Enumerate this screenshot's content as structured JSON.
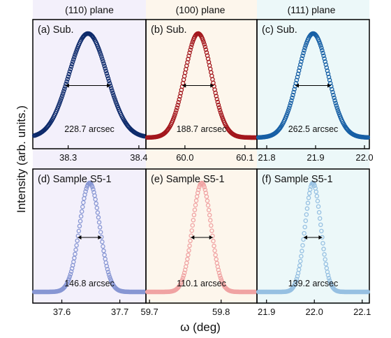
{
  "figure": {
    "ylabel": "Intensity (arb. units.)",
    "xlabel": "ω (deg)",
    "column_titles": [
      "(110) plane",
      "(100) plane",
      "(111) plane"
    ]
  },
  "chart_data": [
    {
      "type": "scatter",
      "panel_label": "(a) Sub.",
      "column_title": "(110) plane",
      "color": "#0d2a6b",
      "background": "#f3f0fb",
      "xlim": [
        38.25,
        38.41
      ],
      "xticks": [
        38.3,
        38.4
      ],
      "xtick_labels": [
        "38.3",
        "38.4"
      ],
      "peak_center": 38.328,
      "fwhm_deg": 0.0635,
      "fwhm_label": "228.7 arcsec",
      "show_xticklabels": true
    },
    {
      "type": "scatter",
      "panel_label": "(b) Sub.",
      "column_title": "(100) plane",
      "color": "#a3161c",
      "background": "#fdf6ec",
      "xlim": [
        59.935,
        60.12
      ],
      "xticks": [
        60.0,
        60.1
      ],
      "xtick_labels": [
        "60.0",
        "60.1"
      ],
      "peak_center": 60.022,
      "fwhm_deg": 0.0524,
      "fwhm_label": "188.7 arcsec",
      "show_xticklabels": true
    },
    {
      "type": "scatter",
      "panel_label": "(c) Sub.",
      "column_title": "(111) plane",
      "color": "#165fa5",
      "background": "#ecf8f9",
      "xlim": [
        21.78,
        22.01
      ],
      "xticks": [
        21.8,
        21.9,
        22.0
      ],
      "xtick_labels": [
        "21.8",
        "21.9",
        "22.0"
      ],
      "peak_center": 21.895,
      "fwhm_deg": 0.0729,
      "fwhm_label": "262.5 arcsec",
      "show_xticklabels": true
    },
    {
      "type": "scatter",
      "panel_label": "(d) Sample S5-1",
      "column_title": "(110) plane",
      "color": "#8796d3",
      "background": "#f3f0fb",
      "xlim": [
        37.55,
        37.745
      ],
      "xticks": [
        37.6,
        37.7
      ],
      "xtick_labels": [
        "37.6",
        "37.7"
      ],
      "peak_center": 37.648,
      "fwhm_deg": 0.0408,
      "fwhm_label": "146.8 arcsec",
      "show_xticklabels": true
    },
    {
      "type": "scatter",
      "panel_label": "(e) Sample S5-1",
      "column_title": "(100) plane",
      "color": "#f0a3a3",
      "background": "#fdf6ec",
      "xlim": [
        59.695,
        59.85
      ],
      "xticks": [
        59.7,
        59.8
      ],
      "xtick_labels": [
        "59.7",
        "59.8"
      ],
      "peak_center": 59.773,
      "fwhm_deg": 0.0306,
      "fwhm_label": "110.1 arcsec",
      "show_xticklabels": true
    },
    {
      "type": "scatter",
      "panel_label": "(f) Sample S5-1",
      "column_title": "(111) plane",
      "color": "#96c0e2",
      "background": "#ecf8f9",
      "xlim": [
        21.88,
        22.115
      ],
      "xticks": [
        21.9,
        22.0,
        22.1
      ],
      "xtick_labels": [
        "21.9",
        "22.0",
        "22.1"
      ],
      "peak_center": 21.997,
      "fwhm_deg": 0.0387,
      "fwhm_label": "139.2 arcsec",
      "show_xticklabels": true
    }
  ]
}
